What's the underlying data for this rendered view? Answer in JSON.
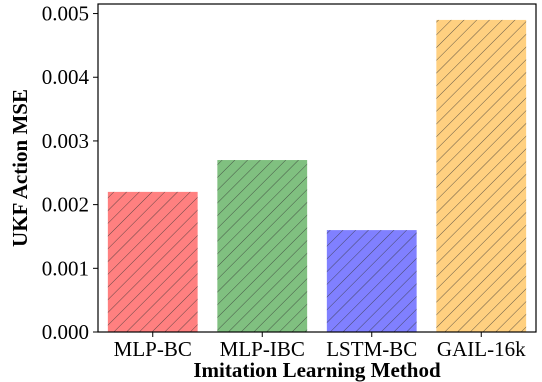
{
  "chart_data": {
    "type": "bar",
    "categories": [
      "MLP-BC",
      "MLP-IBC",
      "LSTM-BC",
      "GAIL-16k"
    ],
    "values": [
      0.0022,
      0.0027,
      0.0016,
      0.0049
    ],
    "xlabel": "Imitation Learning Method",
    "ylabel": "UKF Action MSE",
    "ylim": [
      0,
      0.00515
    ],
    "yticks": [
      0.0,
      0.001,
      0.002,
      0.003,
      0.004,
      0.005
    ],
    "ytick_labels": [
      "0.000",
      "0.001",
      "0.002",
      "0.003",
      "0.004",
      "0.005"
    ],
    "bar_colors": [
      "#ff8080",
      "#80c080",
      "#8080ff",
      "#ffd080"
    ],
    "hatch": "diagonal",
    "grid": false,
    "legend": "none"
  }
}
